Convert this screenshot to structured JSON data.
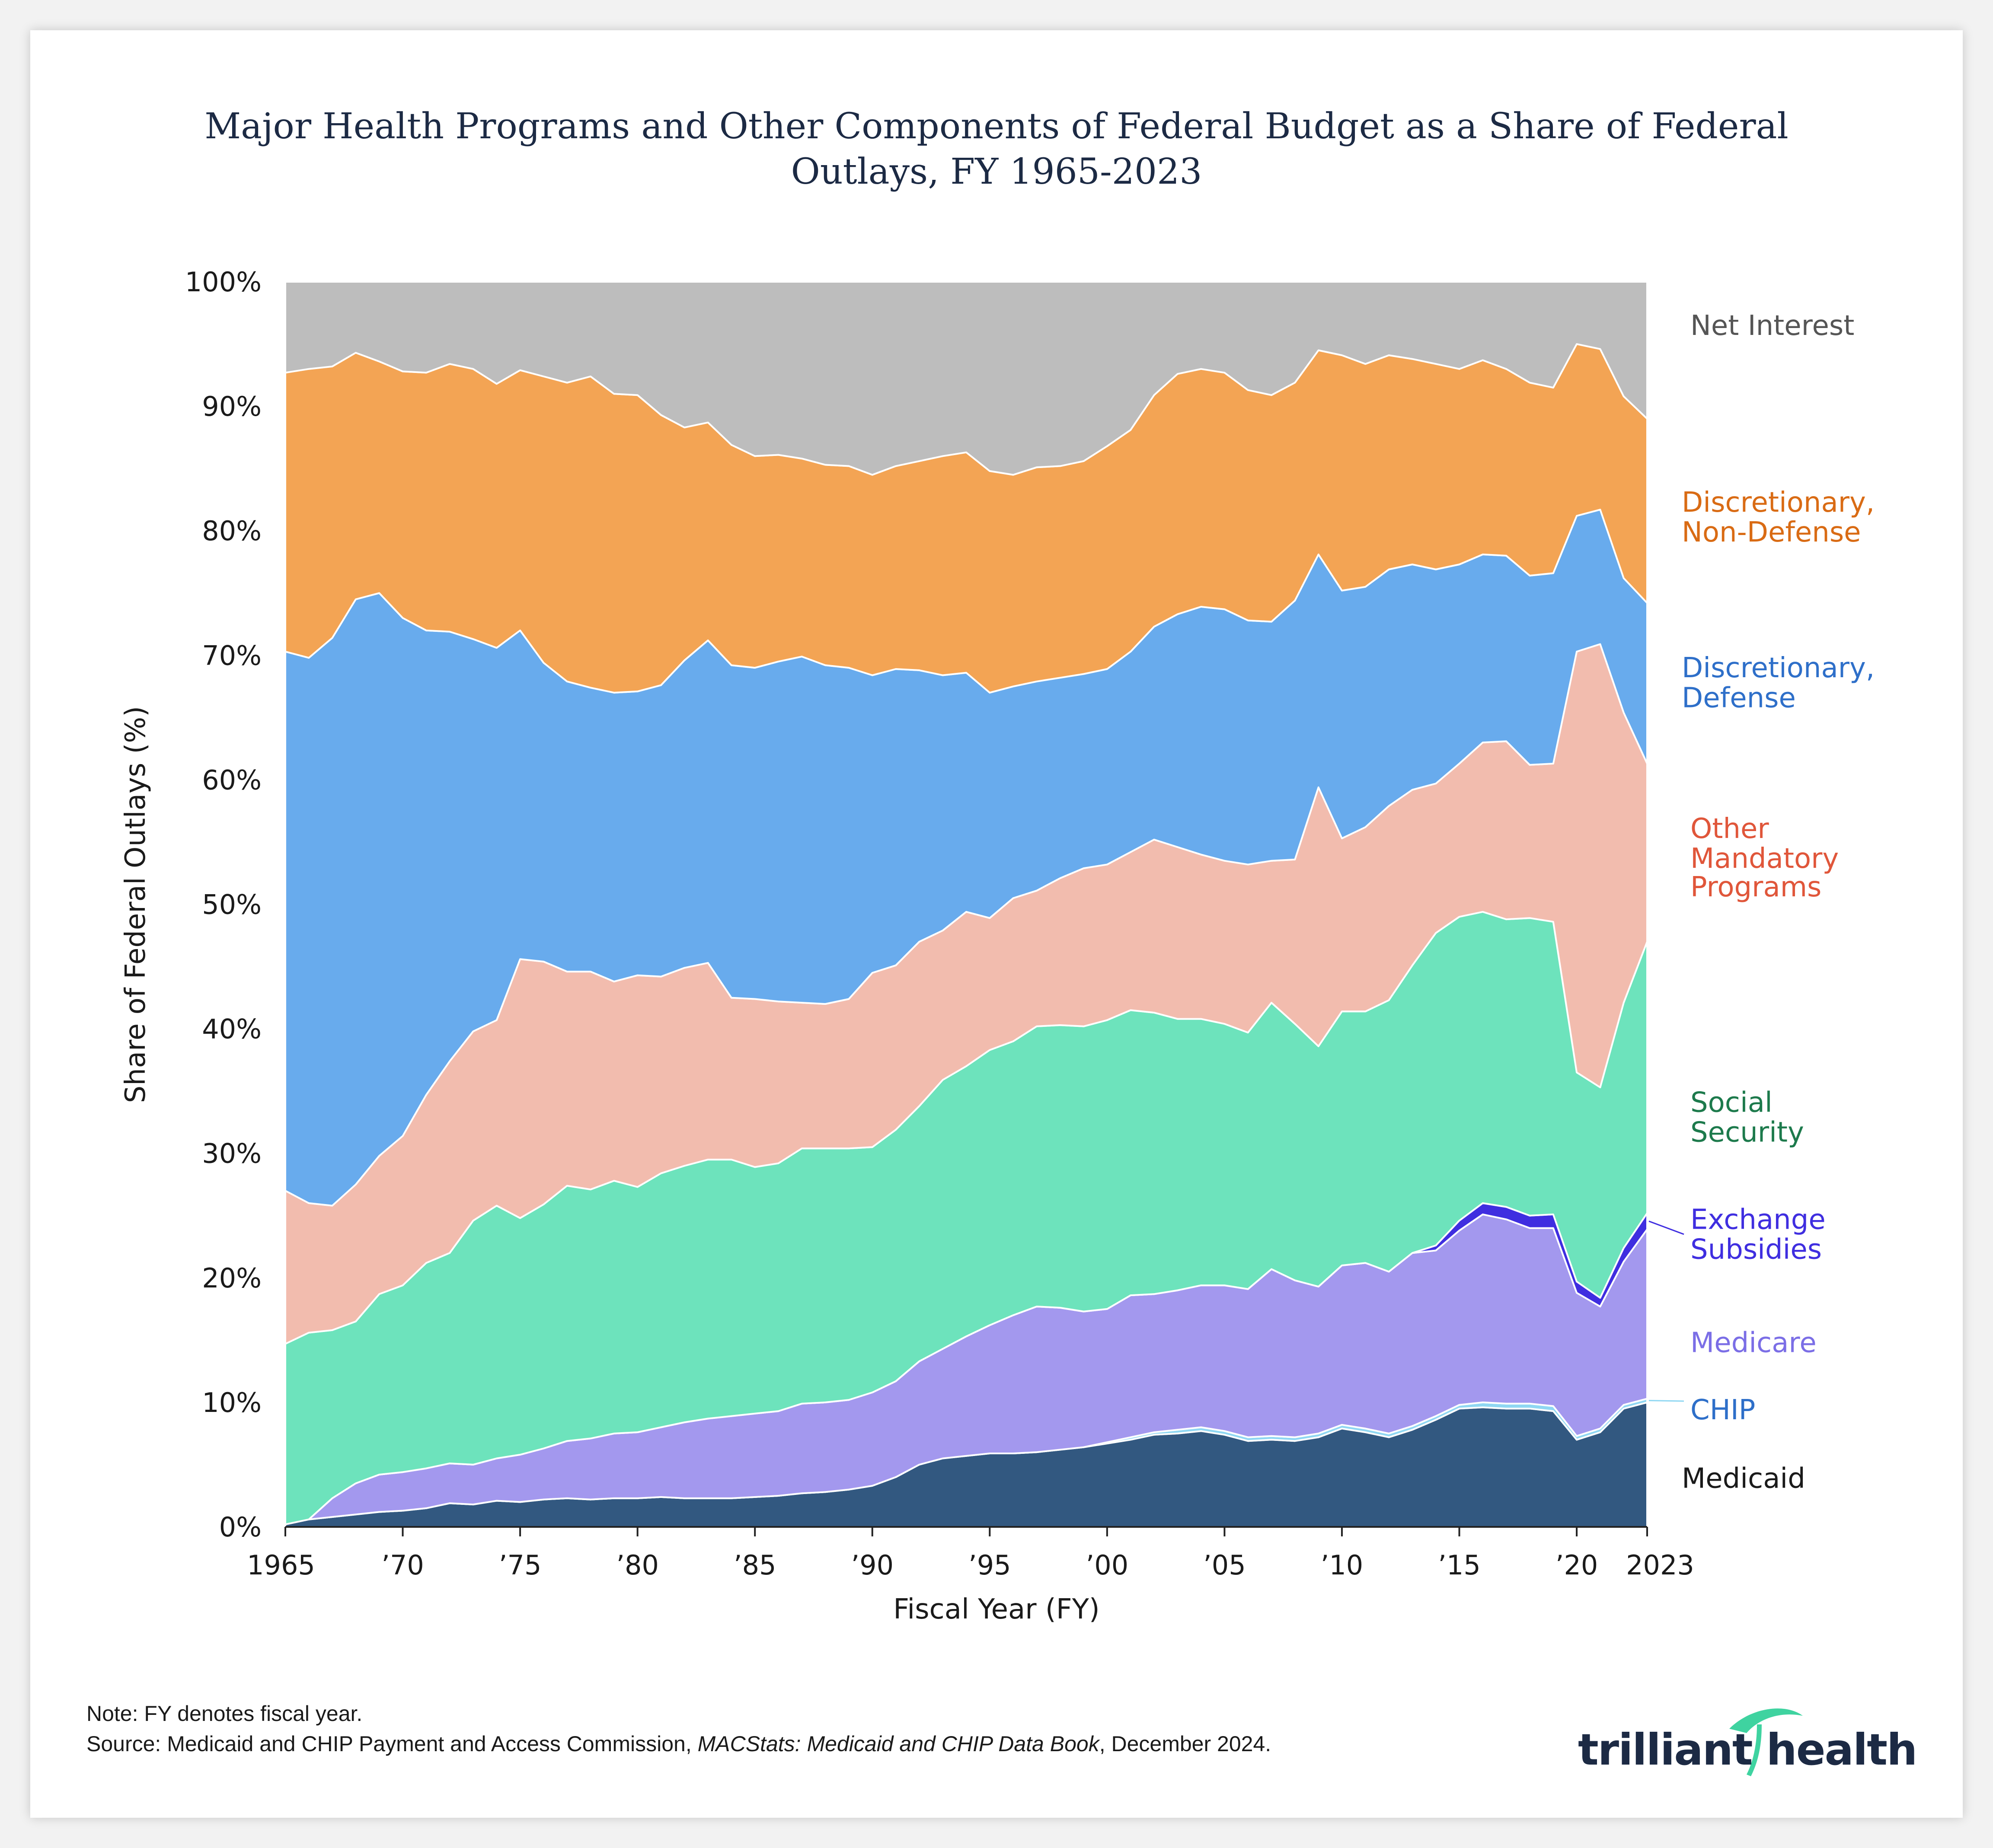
{
  "title": {
    "line1": "Major Health Programs and Other Components of Federal Budget as a Share of Federal",
    "line2": "Outlays, FY 1965-2023"
  },
  "chart_data": {
    "type": "area",
    "stacked": true,
    "xlabel": "Fiscal Year (FY)",
    "ylabel": "Share of Federal Outlays (%)",
    "ylim": [
      0,
      100
    ],
    "xlim": [
      1965,
      2023
    ],
    "yticks": [
      "0%",
      "10%",
      "20%",
      "30%",
      "40%",
      "50%",
      "60%",
      "70%",
      "80%",
      "90%",
      "100%"
    ],
    "xtick_values": [
      1965,
      1970,
      1975,
      1980,
      1985,
      1990,
      1995,
      2000,
      2005,
      2010,
      2015,
      2020,
      2023
    ],
    "xtick_labels": [
      "1965",
      "’70",
      "’75",
      "’80",
      "’85",
      "’90",
      "’95",
      "’00",
      "’05",
      "’10",
      "’15",
      "’20",
      "2023"
    ],
    "x": [
      1965,
      1966,
      1967,
      1968,
      1969,
      1970,
      1971,
      1972,
      1973,
      1974,
      1975,
      1976,
      1977,
      1978,
      1979,
      1980,
      1981,
      1982,
      1983,
      1984,
      1985,
      1986,
      1987,
      1988,
      1989,
      1990,
      1991,
      1992,
      1993,
      1994,
      1995,
      1996,
      1997,
      1998,
      1999,
      2000,
      2001,
      2002,
      2003,
      2004,
      2005,
      2006,
      2007,
      2008,
      2009,
      2010,
      2011,
      2012,
      2013,
      2014,
      2015,
      2016,
      2017,
      2018,
      2019,
      2020,
      2021,
      2022,
      2023
    ],
    "series": [
      {
        "name": "Medicaid",
        "color": "#325880",
        "label_color": "#1a1a1a",
        "values": [
          0.2,
          0.6,
          0.8,
          1.0,
          1.2,
          1.3,
          1.5,
          1.9,
          1.8,
          2.1,
          2.0,
          2.2,
          2.3,
          2.2,
          2.3,
          2.3,
          2.4,
          2.3,
          2.3,
          2.3,
          2.4,
          2.5,
          2.7,
          2.8,
          3.0,
          3.3,
          4.0,
          5.0,
          5.5,
          5.7,
          5.9,
          5.9,
          6.0,
          6.2,
          6.4,
          6.7,
          7.0,
          7.4,
          7.5,
          7.7,
          7.4,
          6.9,
          7.0,
          6.9,
          7.2,
          7.9,
          7.6,
          7.2,
          7.8,
          8.6,
          9.5,
          9.6,
          9.5,
          9.5,
          9.3,
          7.0,
          7.6,
          9.5,
          10.0
        ]
      },
      {
        "name": "CHIP",
        "color": "#8fd7f2",
        "label_color": "#2e6fc9",
        "values": [
          0,
          0,
          0,
          0,
          0,
          0,
          0,
          0,
          0,
          0,
          0,
          0,
          0,
          0,
          0,
          0,
          0,
          0,
          0,
          0,
          0,
          0,
          0,
          0,
          0,
          0,
          0,
          0,
          0,
          0,
          0,
          0,
          0,
          0,
          0,
          0.1,
          0.2,
          0.2,
          0.3,
          0.3,
          0.3,
          0.3,
          0.3,
          0.3,
          0.3,
          0.3,
          0.3,
          0.3,
          0.3,
          0.3,
          0.3,
          0.4,
          0.4,
          0.4,
          0.4,
          0.3,
          0.3,
          0.3,
          0.3
        ]
      },
      {
        "name": "Medicare",
        "color": "#a398ee",
        "label_color": "#7b6ee6",
        "values": [
          0,
          0,
          1.5,
          2.5,
          3.0,
          3.1,
          3.2,
          3.2,
          3.2,
          3.4,
          3.8,
          4.1,
          4.6,
          4.9,
          5.2,
          5.3,
          5.6,
          6.1,
          6.4,
          6.6,
          6.7,
          6.8,
          7.2,
          7.2,
          7.2,
          7.5,
          7.7,
          8.3,
          8.8,
          9.6,
          10.3,
          11.1,
          11.7,
          11.4,
          10.9,
          10.7,
          11.4,
          11.1,
          11.2,
          11.4,
          11.7,
          11.9,
          13.4,
          12.6,
          11.8,
          12.8,
          13.3,
          13.0,
          13.9,
          13.3,
          14.0,
          15.1,
          14.8,
          14.1,
          14.3,
          11.5,
          9.8,
          11.5,
          13.6
        ]
      },
      {
        "name": "Exchange Subsidies",
        "color": "#3f2ee0",
        "label_color": "#3f2ee0",
        "values": [
          0,
          0,
          0,
          0,
          0,
          0,
          0,
          0,
          0,
          0,
          0,
          0,
          0,
          0,
          0,
          0,
          0,
          0,
          0,
          0,
          0,
          0,
          0,
          0,
          0,
          0,
          0,
          0,
          0,
          0,
          0,
          0,
          0,
          0,
          0,
          0,
          0,
          0,
          0,
          0,
          0,
          0,
          0,
          0,
          0,
          0,
          0,
          0,
          0,
          0.4,
          0.8,
          0.9,
          1.0,
          1.0,
          1.1,
          0.9,
          0.7,
          1.1,
          1.3
        ]
      },
      {
        "name": "Social Security",
        "color": "#6de3bc",
        "label_color": "#1d7a4c",
        "values": [
          14.5,
          15.0,
          13.5,
          13.0,
          14.5,
          15.0,
          16.5,
          16.9,
          19.6,
          20.3,
          19.0,
          19.6,
          20.5,
          20.0,
          20.3,
          19.7,
          20.4,
          20.6,
          20.8,
          20.6,
          19.8,
          19.9,
          20.5,
          20.4,
          20.2,
          19.7,
          20.2,
          20.5,
          21.6,
          21.7,
          22.1,
          22.0,
          22.5,
          22.7,
          22.9,
          23.2,
          22.9,
          22.6,
          21.8,
          21.4,
          21.0,
          20.6,
          21.4,
          20.6,
          19.3,
          20.4,
          20.2,
          21.8,
          23.1,
          25.1,
          24.4,
          23.4,
          23.1,
          23.9,
          23.5,
          16.8,
          16.9,
          19.7,
          21.8
        ]
      },
      {
        "name": "Other Mandatory Programs",
        "color": "#f2bcae",
        "label_color": "#e0563a",
        "values": [
          12.3,
          10.4,
          10.0,
          11.0,
          11.1,
          12.0,
          13.5,
          15.4,
          15.2,
          14.9,
          20.8,
          19.5,
          17.2,
          17.5,
          16.0,
          17.0,
          15.8,
          15.9,
          15.8,
          13.0,
          13.5,
          13.0,
          11.7,
          11.6,
          12.0,
          14.0,
          13.2,
          13.2,
          12.0,
          12.4,
          10.6,
          11.5,
          10.9,
          11.8,
          12.7,
          12.5,
          12.7,
          13.9,
          13.8,
          13.2,
          13.1,
          13.5,
          11.4,
          13.2,
          20.8,
          13.9,
          14.8,
          15.6,
          14.1,
          12.0,
          12.3,
          13.6,
          14.3,
          12.3,
          12.7,
          33.8,
          35.6,
          23.3,
          14.3
        ]
      },
      {
        "name": "Discretionary, Defense",
        "color": "#68abed",
        "label_color": "#2e6fc9",
        "values": [
          43.3,
          43.8,
          45.6,
          47.0,
          45.2,
          41.6,
          37.3,
          34.5,
          31.5,
          29.9,
          26.4,
          24.0,
          23.3,
          22.8,
          23.2,
          22.8,
          23.4,
          24.7,
          25.9,
          26.7,
          26.6,
          27.3,
          27.8,
          27.2,
          26.6,
          23.9,
          23.8,
          21.8,
          20.5,
          19.2,
          18.1,
          17.0,
          16.8,
          16.1,
          15.6,
          15.7,
          16.1,
          17.1,
          18.7,
          19.9,
          20.2,
          19.6,
          19.2,
          20.8,
          18.7,
          19.9,
          19.3,
          19.0,
          18.1,
          17.2,
          16.0,
          15.1,
          14.9,
          15.2,
          15.3,
          10.9,
          10.8,
          10.8,
          12.9
        ]
      },
      {
        "name": "Discretionary, Non-Defense",
        "color": "#f3a454",
        "label_color": "#d96b14",
        "values": [
          22.4,
          23.2,
          21.8,
          19.8,
          18.6,
          19.8,
          20.7,
          21.5,
          21.7,
          21.2,
          20.9,
          23.0,
          24.0,
          25.0,
          24.0,
          23.8,
          21.7,
          18.7,
          17.5,
          17.7,
          17.0,
          16.6,
          15.9,
          16.1,
          16.2,
          16.1,
          16.3,
          16.8,
          17.6,
          17.7,
          17.8,
          17.0,
          17.2,
          17.0,
          17.1,
          17.9,
          17.8,
          18.6,
          19.3,
          19.1,
          19.0,
          18.5,
          18.2,
          17.5,
          16.4,
          18.9,
          17.9,
          17.2,
          16.5,
          16.5,
          15.7,
          15.6,
          15.0,
          15.5,
          14.9,
          13.8,
          12.9,
          14.6,
          14.8
        ]
      },
      {
        "name": "Net Interest",
        "color": "#bdbdbd",
        "label_color": "#555555",
        "values": [
          7.3,
          7.0,
          6.8,
          6.7,
          7.0,
          7.2,
          7.1,
          6.8,
          7.1,
          8.1,
          7.1,
          7.2,
          7.5,
          7.8,
          8.5,
          8.9,
          10.3,
          11.5,
          11.2,
          12.9,
          13.8,
          13.9,
          14.0,
          14.6,
          14.7,
          14.7,
          14.6,
          14.5,
          14.1,
          13.8,
          15.2,
          15.4,
          15.2,
          14.6,
          13.7,
          12.6,
          11.1,
          8.5,
          7.1,
          7.0,
          7.3,
          8.6,
          8.8,
          8.5,
          5.3,
          5.7,
          6.4,
          6.2,
          6.3,
          6.6,
          6.2,
          6.3,
          6.8,
          8.0,
          8.5,
          5.2,
          5.2,
          7.6,
          10.9
        ]
      }
    ]
  },
  "footnotes": {
    "note": "Note: FY denotes fiscal year.",
    "source_prefix": "Source: Medicaid and CHIP Payment and Access Commission, ",
    "source_title": "MACStats: Medicaid and CHIP Data Book",
    "source_suffix": ", December 2024."
  },
  "logo": {
    "wordmark": "trilliant health",
    "mark_color": "#3fd3a0"
  }
}
